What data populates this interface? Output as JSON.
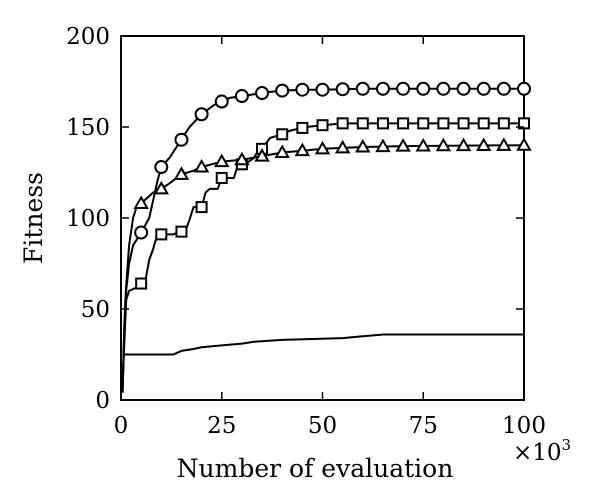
{
  "chart_data": {
    "type": "line",
    "xlabel": "Number of evaluation",
    "x_multiplier_label": "×10",
    "x_multiplier_exponent": "3",
    "ylabel": "Fitness",
    "xlim": [
      0,
      100
    ],
    "ylim": [
      0,
      200
    ],
    "xticks": [
      "0",
      "25",
      "50",
      "75",
      "100"
    ],
    "yticks": [
      "0",
      "50",
      "100",
      "150",
      "200"
    ],
    "grid": false,
    "series": [
      {
        "marker": "circle",
        "points": [
          [
            0.4,
            5
          ],
          [
            0.8,
            35
          ],
          [
            1.3,
            60
          ],
          [
            2,
            75
          ],
          [
            3,
            85
          ],
          [
            5,
            92
          ],
          [
            7,
            100
          ],
          [
            9,
            120
          ],
          [
            10,
            128
          ],
          [
            12,
            133
          ],
          [
            15,
            143
          ],
          [
            17,
            150
          ],
          [
            20,
            157
          ],
          [
            23,
            162
          ],
          [
            25,
            164
          ],
          [
            27,
            166
          ],
          [
            30,
            167
          ],
          [
            33,
            168
          ],
          [
            36,
            169
          ],
          [
            40,
            170
          ],
          [
            45,
            170.5
          ],
          [
            50,
            170.5
          ],
          [
            60,
            171
          ],
          [
            100,
            171
          ]
        ],
        "marker_x": [
          5,
          10,
          15,
          20,
          25,
          30,
          35,
          40,
          45,
          50,
          55,
          60,
          65,
          70,
          75,
          80,
          85,
          90,
          95,
          100
        ]
      },
      {
        "marker": "square",
        "points": [
          [
            0.4,
            8
          ],
          [
            0.8,
            30
          ],
          [
            1.3,
            55
          ],
          [
            2,
            60
          ],
          [
            4,
            62
          ],
          [
            5,
            64
          ],
          [
            6,
            65
          ],
          [
            7,
            77
          ],
          [
            8,
            83
          ],
          [
            9,
            91
          ],
          [
            12,
            91
          ],
          [
            13,
            91
          ],
          [
            14,
            92
          ],
          [
            16,
            93
          ],
          [
            17,
            99
          ],
          [
            18,
            106
          ],
          [
            20,
            106
          ],
          [
            21,
            114
          ],
          [
            22,
            116
          ],
          [
            24,
            116
          ],
          [
            25,
            122
          ],
          [
            28,
            122
          ],
          [
            29,
            129
          ],
          [
            31,
            130
          ],
          [
            33,
            133
          ],
          [
            34,
            137
          ],
          [
            35,
            138
          ],
          [
            37,
            144
          ],
          [
            40,
            146
          ],
          [
            42,
            148
          ],
          [
            44,
            149
          ],
          [
            46,
            150
          ],
          [
            50,
            151
          ],
          [
            55,
            152
          ],
          [
            100,
            152
          ]
        ],
        "marker_x": [
          5,
          10,
          15,
          20,
          25,
          30,
          35,
          40,
          45,
          50,
          55,
          60,
          65,
          70,
          75,
          80,
          85,
          90,
          95,
          100
        ]
      },
      {
        "marker": "triangle",
        "points": [
          [
            0.4,
            4
          ],
          [
            0.8,
            40
          ],
          [
            1.2,
            60
          ],
          [
            2,
            85
          ],
          [
            3,
            100
          ],
          [
            4,
            107
          ],
          [
            5,
            108
          ],
          [
            6,
            110
          ],
          [
            8,
            114
          ],
          [
            10,
            116
          ],
          [
            12,
            119
          ],
          [
            15,
            124
          ],
          [
            18,
            126
          ],
          [
            20,
            128
          ],
          [
            25,
            131
          ],
          [
            30,
            132
          ],
          [
            35,
            134
          ],
          [
            40,
            136
          ],
          [
            45,
            137
          ],
          [
            50,
            138
          ],
          [
            60,
            139
          ],
          [
            70,
            139.5
          ],
          [
            100,
            140
          ]
        ],
        "marker_x": [
          5,
          10,
          15,
          20,
          25,
          30,
          35,
          40,
          45,
          50,
          55,
          60,
          65,
          70,
          75,
          80,
          85,
          90,
          95,
          100
        ]
      },
      {
        "marker": "none",
        "points": [
          [
            0.3,
            5
          ],
          [
            0.7,
            25
          ],
          [
            13,
            25
          ],
          [
            14,
            26
          ],
          [
            15,
            27
          ],
          [
            18,
            28
          ],
          [
            20,
            29
          ],
          [
            25,
            30
          ],
          [
            30,
            31
          ],
          [
            33,
            32
          ],
          [
            40,
            33
          ],
          [
            55,
            34
          ],
          [
            60,
            35
          ],
          [
            65,
            36
          ],
          [
            100,
            36
          ]
        ],
        "marker_x": []
      }
    ]
  }
}
